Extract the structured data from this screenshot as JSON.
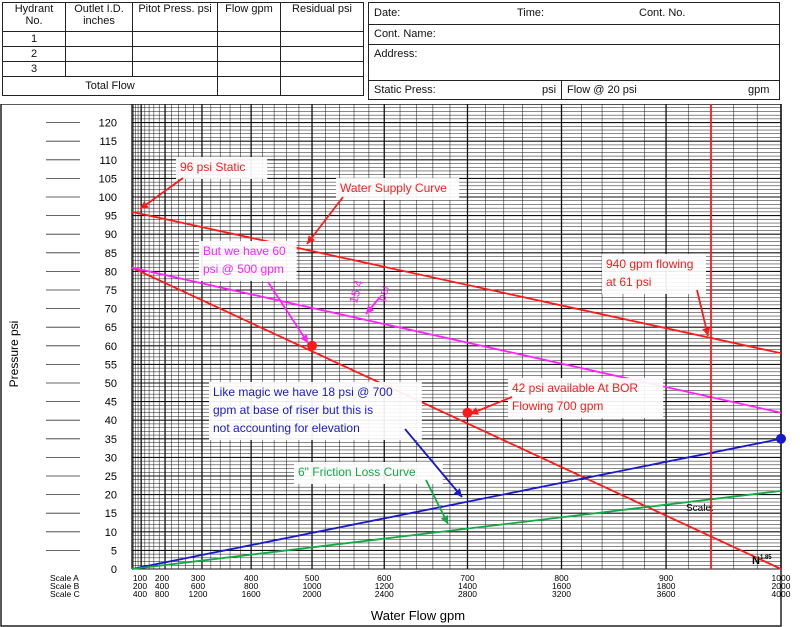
{
  "form": {
    "headers": [
      "Hydrant No.",
      "Outlet I.D. inches",
      "Pitot Press. psi",
      "Flow gpm",
      "Residual psi"
    ],
    "rows": [
      "1",
      "2",
      "3"
    ],
    "total_label": "Total Flow",
    "date_label": "Date:",
    "time_label": "Time:",
    "cont_no_label": "Cont. No.",
    "cont_name_label": "Cont. Name:",
    "address_label": "Address:",
    "static_label": "Static Press:",
    "static_unit": "psi",
    "flow_label": "Flow @ 20 psi",
    "flow_unit": "gpm"
  },
  "chart_data": {
    "type": "line",
    "title": "",
    "xlabel": "Water Flow gpm",
    "ylabel": "Pressure psi",
    "x_scale": "N^1.85",
    "ylim": [
      0,
      125
    ],
    "yticks": [
      0,
      5,
      10,
      15,
      20,
      25,
      30,
      35,
      40,
      45,
      50,
      55,
      60,
      65,
      70,
      75,
      80,
      85,
      90,
      95,
      100,
      105,
      110,
      115,
      120
    ],
    "scale_names": [
      "Scale A",
      "Scale B",
      "Scale C"
    ],
    "scale_ticks": [
      {
        "A": "100",
        "B": "200",
        "C": "400"
      },
      {
        "A": "200",
        "B": "400",
        "C": "800"
      },
      {
        "A": "300",
        "B": "600",
        "C": "1200"
      },
      {
        "A": "400",
        "B": "800",
        "C": "1600"
      },
      {
        "A": "500",
        "B": "1000",
        "C": "2000"
      },
      {
        "A": "600",
        "B": "1200",
        "C": "2400"
      },
      {
        "A": "700",
        "B": "1400",
        "C": "2800"
      },
      {
        "A": "800",
        "B": "1600",
        "C": "3200"
      },
      {
        "A": "900",
        "B": "1800",
        "C": "3600"
      },
      {
        "A": "1000",
        "B": "2000",
        "C": "4000"
      }
    ],
    "n_label": "N",
    "n_exp": "1.85",
    "scale_word": "Scale:",
    "series": [
      {
        "name": "Water Supply Curve",
        "color": "#ff1a1a",
        "points": [
          [
            0,
            96
          ],
          [
            1000,
            58
          ]
        ]
      },
      {
        "color": "#ff1a1a",
        "points": [
          [
            0,
            81
          ],
          [
            1000,
            0
          ]
        ]
      },
      {
        "color": "#ff22ff",
        "points": [
          [
            0,
            81
          ],
          [
            1000,
            42
          ]
        ]
      },
      {
        "color": "#1a1acc",
        "points": [
          [
            0,
            0
          ],
          [
            1000,
            35
          ]
        ]
      },
      {
        "name": "6\" Friction Loss Curve",
        "color": "#11aa44",
        "points": [
          [
            0,
            0
          ],
          [
            1000,
            21
          ]
        ]
      }
    ],
    "vertical_line": {
      "x": 940,
      "color": "#ff1a1a"
    },
    "markers": [
      {
        "x": 500,
        "y": 60,
        "color": "#ff1a1a"
      },
      {
        "x": 700,
        "y": 42,
        "color": "#ff1a1a"
      },
      {
        "x": 1000,
        "y": 35,
        "color": "#1a1acc"
      }
    ],
    "annotations": [
      {
        "lines": [
          "96 psi Static"
        ],
        "color": "#ff1a1a"
      },
      {
        "lines": [
          "Water Supply Curve"
        ],
        "color": "#ff1a1a"
      },
      {
        "lines": [
          "But we have 60",
          "psi @ 500 gpm"
        ],
        "color": "#ff22ff"
      },
      {
        "lines": [
          "940 gpm flowing",
          "at 61 psi"
        ],
        "color": "#ff1a1a"
      },
      {
        "lines": [
          "15.4",
          "psi"
        ],
        "color": "#ff22ff"
      },
      {
        "lines": [
          "42 psi available At BOR",
          "Flowing 700 gpm"
        ],
        "color": "#ff1a1a"
      },
      {
        "lines": [
          "Like magic we have 18 psi @ 700",
          "gpm at base of riser but this is",
          "not accounting for elevation"
        ],
        "color": "#1a1acc"
      },
      {
        "lines": [
          "6\" Friction Loss Curve"
        ],
        "color": "#11aa44"
      }
    ]
  }
}
